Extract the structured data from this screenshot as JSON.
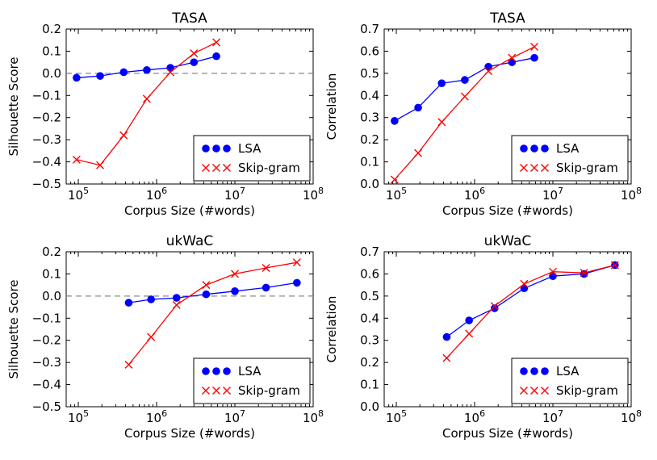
{
  "chart_data": [
    {
      "type": "line",
      "title": "TASA",
      "xlabel": "Corpus Size (#words)",
      "ylabel": "Silhouette Score",
      "xscale": "log",
      "xlim": [
        70000,
        100000000
      ],
      "ylim": [
        -0.5,
        0.2
      ],
      "yticks": [
        "−0.5",
        "−0.4",
        "−0.3",
        "−0.2",
        "−0.1",
        "0.0",
        "0.1",
        "0.2"
      ],
      "xtick_exps": [
        "5",
        "6",
        "7",
        "8"
      ],
      "xtick_base": "10",
      "reference_line": 0,
      "legend_position": "lower-right",
      "series": [
        {
          "name": "LSA",
          "color": "#0000ff",
          "marker": "circle",
          "x": [
            95000,
            190000,
            380000,
            750000,
            1500000,
            3000000,
            5800000
          ],
          "y": [
            -0.02,
            -0.012,
            0.005,
            0.015,
            0.025,
            0.05,
            0.077
          ]
        },
        {
          "name": "Skip-gram",
          "color": "#ff0000",
          "marker": "x",
          "x": [
            95000,
            190000,
            380000,
            750000,
            1500000,
            3000000,
            5800000
          ],
          "y": [
            -0.39,
            -0.415,
            -0.28,
            -0.115,
            0.005,
            0.09,
            0.14
          ]
        }
      ]
    },
    {
      "type": "line",
      "title": "TASA",
      "xlabel": "Corpus Size (#words)",
      "ylabel": "Correlation",
      "xscale": "log",
      "xlim": [
        70000,
        100000000
      ],
      "ylim": [
        0.0,
        0.7
      ],
      "yticks": [
        "0.0",
        "0.1",
        "0.2",
        "0.3",
        "0.4",
        "0.5",
        "0.6",
        "0.7"
      ],
      "xtick_exps": [
        "5",
        "6",
        "7",
        "8"
      ],
      "xtick_base": "10",
      "legend_position": "lower-right",
      "series": [
        {
          "name": "LSA",
          "color": "#0000ff",
          "marker": "circle",
          "x": [
            95000,
            190000,
            380000,
            750000,
            1500000,
            3000000,
            5800000
          ],
          "y": [
            0.285,
            0.345,
            0.455,
            0.47,
            0.53,
            0.55,
            0.57
          ]
        },
        {
          "name": "Skip-gram",
          "color": "#ff0000",
          "marker": "x",
          "x": [
            95000,
            190000,
            380000,
            750000,
            1500000,
            3000000,
            5800000
          ],
          "y": [
            0.02,
            0.14,
            0.28,
            0.395,
            0.51,
            0.57,
            0.62
          ]
        }
      ]
    },
    {
      "type": "line",
      "title": "ukWaC",
      "xlabel": "Corpus Size (#words)",
      "ylabel": "Silhouette Score",
      "xscale": "log",
      "xlim": [
        70000,
        100000000
      ],
      "ylim": [
        -0.5,
        0.2
      ],
      "yticks": [
        "−0.5",
        "−0.4",
        "−0.3",
        "−0.2",
        "−0.1",
        "0.0",
        "0.1",
        "0.2"
      ],
      "xtick_exps": [
        "5",
        "6",
        "7",
        "8"
      ],
      "xtick_base": "10",
      "reference_line": 0,
      "legend_position": "lower-right",
      "series": [
        {
          "name": "LSA",
          "color": "#0000ff",
          "marker": "circle",
          "x": [
            440000,
            850000,
            1800000,
            4300000,
            10000000,
            25000000,
            62000000
          ],
          "y": [
            -0.03,
            -0.015,
            -0.008,
            0.008,
            0.022,
            0.038,
            0.06
          ]
        },
        {
          "name": "Skip-gram",
          "color": "#ff0000",
          "marker": "x",
          "x": [
            440000,
            850000,
            1800000,
            4300000,
            10000000,
            25000000,
            62000000
          ],
          "y": [
            -0.31,
            -0.185,
            -0.04,
            0.05,
            0.1,
            0.127,
            0.152
          ]
        }
      ]
    },
    {
      "type": "line",
      "title": "ukWaC",
      "xlabel": "Corpus Size (#words)",
      "ylabel": "Correlation",
      "xscale": "log",
      "xlim": [
        70000,
        100000000
      ],
      "ylim": [
        0.0,
        0.7
      ],
      "yticks": [
        "0.0",
        "0.1",
        "0.2",
        "0.3",
        "0.4",
        "0.5",
        "0.6",
        "0.7"
      ],
      "xtick_exps": [
        "5",
        "6",
        "7",
        "8"
      ],
      "xtick_base": "10",
      "legend_position": "lower-right",
      "series": [
        {
          "name": "LSA",
          "color": "#0000ff",
          "marker": "circle",
          "x": [
            440000,
            850000,
            1800000,
            4300000,
            10000000,
            25000000,
            62000000
          ],
          "y": [
            0.315,
            0.39,
            0.445,
            0.535,
            0.59,
            0.6,
            0.64
          ]
        },
        {
          "name": "Skip-gram",
          "color": "#ff0000",
          "marker": "x",
          "x": [
            440000,
            850000,
            1800000,
            4300000,
            10000000,
            25000000,
            62000000
          ],
          "y": [
            0.22,
            0.33,
            0.455,
            0.555,
            0.61,
            0.605,
            0.64
          ]
        }
      ]
    }
  ]
}
